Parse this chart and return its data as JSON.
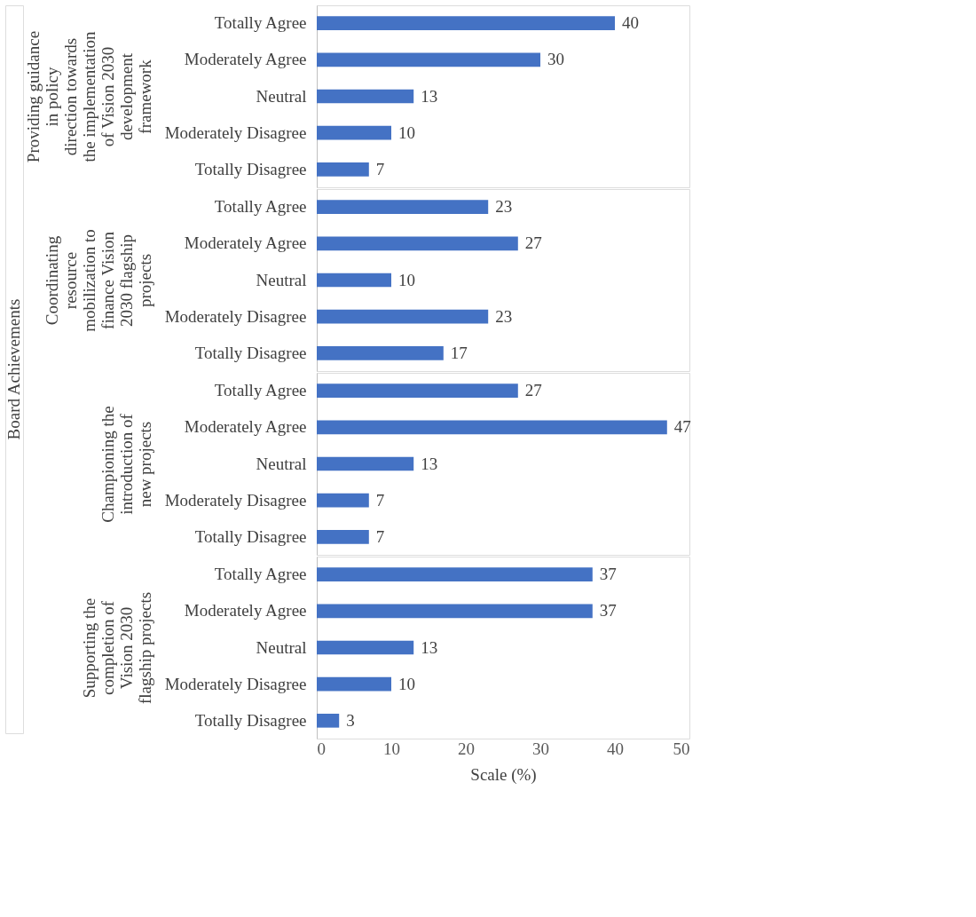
{
  "chart_data": [
    {
      "type": "bar",
      "orientation": "horizontal",
      "ylabel": "Providing guidance in policy direction towards the implementation of Vision 2030 development framework",
      "categories": [
        "Totally Agree",
        "Moderately Agree",
        "Neutral",
        "Moderately Disagree",
        "Totally Disagree"
      ],
      "values": [
        40,
        30,
        13,
        10,
        7
      ],
      "color": "#4472c4",
      "data_labels": true,
      "xlim": [
        0,
        50
      ],
      "xticks": [
        0,
        10,
        20,
        30,
        40,
        50
      ],
      "tick_labels": "y",
      "grid": false,
      "annotations": [
        "Board Achievements"
      ]
    },
    {
      "type": "bar",
      "orientation": "horizontal",
      "ylabel": "Coordinating resource mobilization to finance Vision 2030 flagship projects",
      "categories": [
        "Totally Agree",
        "Moderately Agree",
        "Neutral",
        "Moderately Disagree",
        "Totally Disagree"
      ],
      "values": [
        23,
        27,
        10,
        23,
        17
      ],
      "color": "#4472c4",
      "data_labels": true,
      "xlim": [
        0,
        50
      ],
      "xticks": [
        0,
        10,
        20,
        30,
        40,
        50
      ],
      "tick_labels": "y",
      "grid": false
    },
    {
      "type": "bar",
      "orientation": "horizontal",
      "ylabel": "Championing the introduction of new projects",
      "categories": [
        "Totally Agree",
        "Moderately Agree",
        "Neutral",
        "Moderately Disagree",
        "Totally Disagree"
      ],
      "values": [
        27,
        47,
        13,
        7,
        7
      ],
      "color": "#4472c4",
      "data_labels": true,
      "xlim": [
        0,
        50
      ],
      "xticks": [
        0,
        10,
        20,
        30,
        40,
        50
      ],
      "tick_labels": "y",
      "grid": false
    },
    {
      "type": "bar",
      "orientation": "horizontal",
      "ylabel": "Supporting the completion of Vision 2030 flagship projects",
      "xlabel": "Scale (%)",
      "categories": [
        "Totally Agree",
        "Moderately Agree",
        "Neutral",
        "Moderately Disagree",
        "Totally Disagree"
      ],
      "values": [
        37,
        37,
        13,
        10,
        3
      ],
      "color": "#4472c4",
      "data_labels": true,
      "xlim": [
        0,
        50
      ],
      "xticks": [
        0,
        10,
        20,
        30,
        40,
        50
      ],
      "grid": false
    }
  ]
}
